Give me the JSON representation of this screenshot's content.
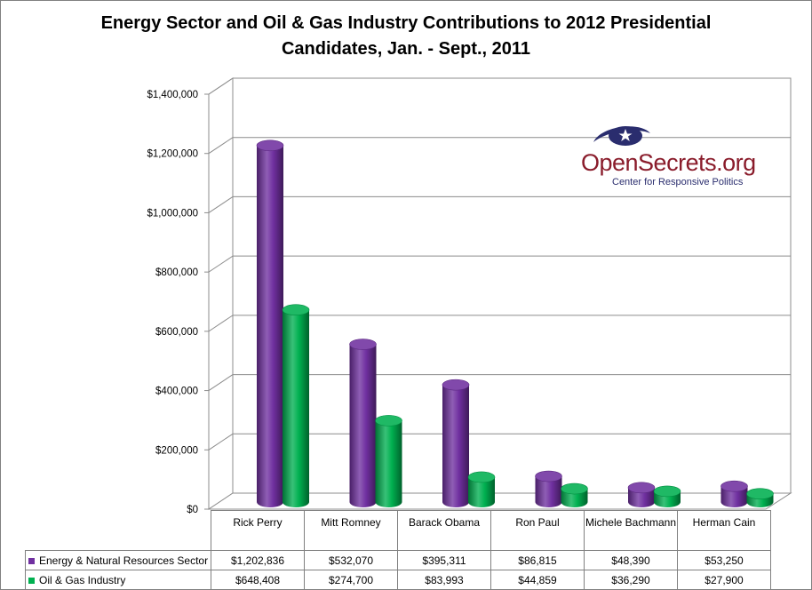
{
  "chart_data": {
    "type": "bar",
    "title": "Energy Sector and Oil & Gas Industry Contributions to 2012 Presidential Candidates, Jan. - Sept., 2011",
    "title_lines": [
      "Energy Sector and Oil & Gas Industry Contributions to 2012 Presidential",
      "Candidates, Jan. - Sept., 2011"
    ],
    "categories": [
      "Rick Perry",
      "Mitt Romney",
      "Barack Obama",
      "Ron Paul",
      "Michele Bachmann",
      "Herman Cain"
    ],
    "series": [
      {
        "name": "Energy & Natural Resources Sector",
        "color": "#7030a0",
        "values": [
          1202836,
          532070,
          395311,
          86815,
          48390,
          53250
        ],
        "labels": [
          "$1,202,836",
          "$532,070",
          "$395,311",
          "$86,815",
          "$48,390",
          "$53,250"
        ]
      },
      {
        "name": "Oil & Gas Industry",
        "color": "#00b050",
        "values": [
          648408,
          274700,
          83993,
          44859,
          36290,
          27900
        ],
        "labels": [
          "$648,408",
          "$274,700",
          "$83,993",
          "$44,859",
          "$36,290",
          "$27,900"
        ]
      }
    ],
    "ylim": [
      0,
      1400000
    ],
    "yticks": [
      0,
      200000,
      400000,
      600000,
      800000,
      1000000,
      1200000,
      1400000
    ],
    "ytick_labels": [
      "$0",
      "$200,000",
      "$400,000",
      "$600,000",
      "$800,000",
      "$1,000,000",
      "$1,200,000",
      "$1,400,000"
    ],
    "xlabel": "",
    "ylabel": "",
    "grid": true,
    "legend": "data table below chart",
    "style": "3d cylinder"
  },
  "logo": {
    "wordmark": "OpenSecrets.org",
    "tagline": "Center for Responsive Politics",
    "accent_color": "#8a1c2b",
    "secondary_color": "#2a2d6e"
  }
}
